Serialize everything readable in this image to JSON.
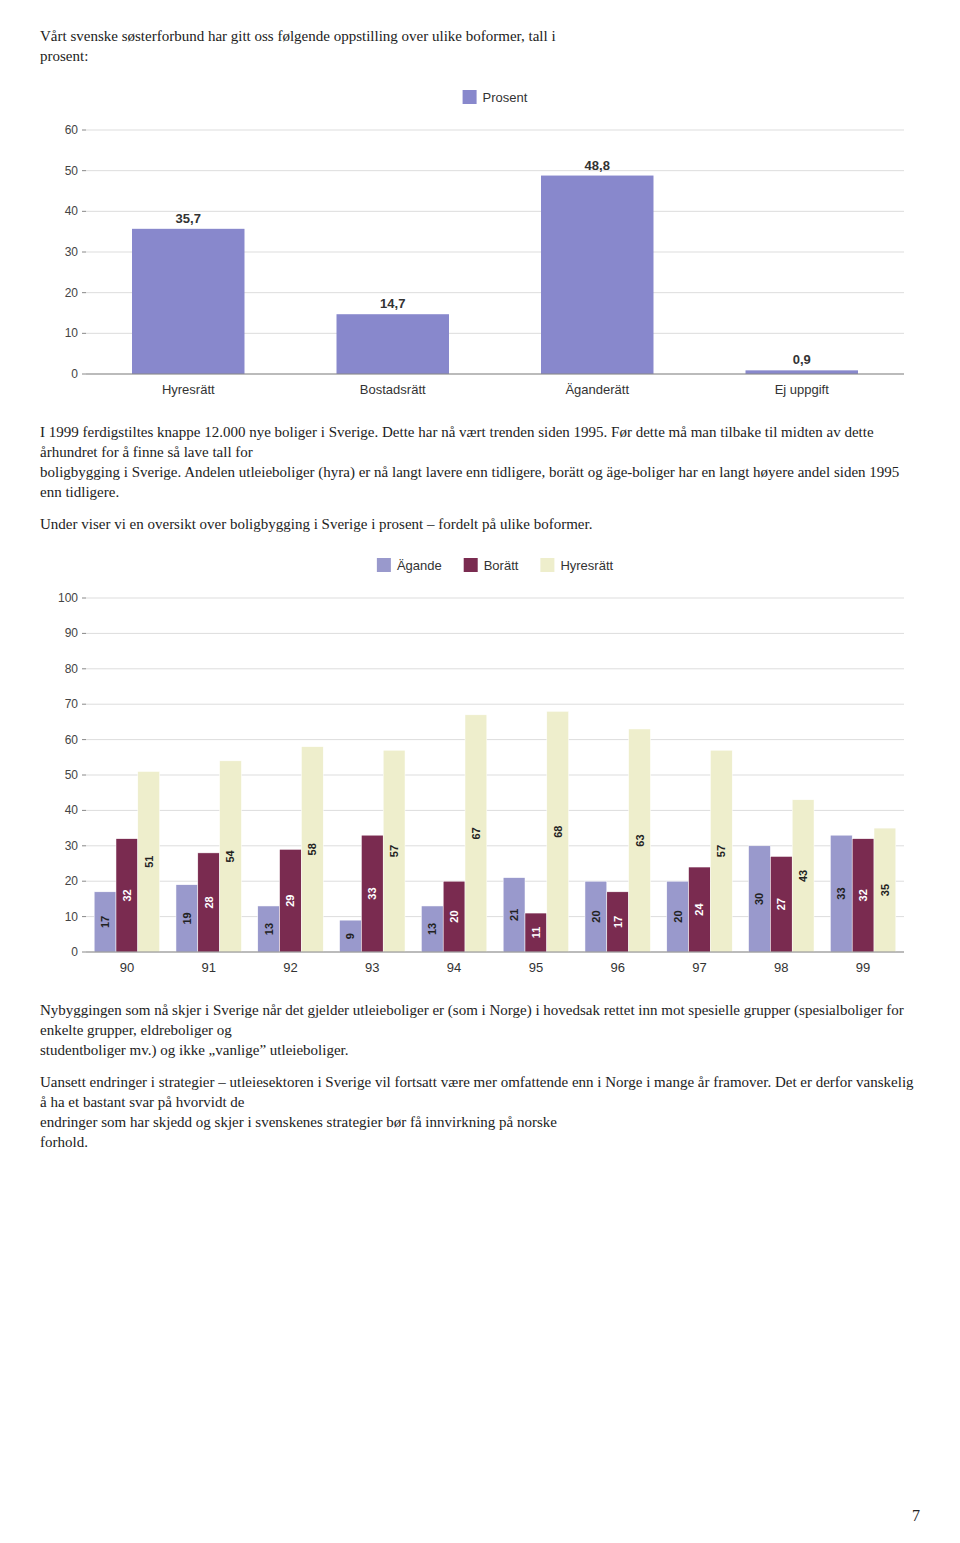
{
  "text_intro": [
    [
      "Vårt svenske søsterforbund har gitt oss følgende oppstilling over ulike boformer, tall i",
      "prosent:"
    ]
  ],
  "text_middle": [
    [
      "I 1999 ferdigstiltes knappe 12.000 nye boliger i Sverige. Dette har nå vært trenden siden 1995. Før dette må man tilbake til midten av dette århundret for å finne så lave tall for",
      "boligbygging i Sverige. Andelen utleieboliger (hyra) er nå langt lavere enn tidligere, borätt og äge-boliger har en langt høyere andel siden 1995 enn tidligere."
    ],
    [
      "Under viser vi en oversikt over boligbygging i Sverige i prosent – fordelt på ulike boformer."
    ]
  ],
  "text_bottom": [
    [
      "Nybyggingen som nå skjer i Sverige når det gjelder utleieboliger er (som i Norge) i hovedsak rettet inn mot spesielle grupper (spesialboliger for enkelte grupper, eldreboliger og",
      "studentboliger mv.) og ikke „vanlige” utleieboliger."
    ],
    [
      "Uansett endringer i strategier – utleiesektoren i Sverige vil fortsatt være mer omfattende enn i Norge i mange år framover. Det er derfor vanskelig å ha et bastant svar på hvorvidt de",
      "endringer som har skjedd og skjer i svenskenes strategier bør få innvirkning på norske",
      "forhold."
    ]
  ],
  "page_number": "7",
  "chart_data": [
    {
      "type": "bar",
      "categories": [
        "Hyresrätt",
        "Bostadsrätt",
        "Äganderätt",
        "Ej uppgift"
      ],
      "series": [
        {
          "name": "Prosent",
          "color": "#8888cc",
          "values": [
            35.7,
            14.7,
            48.8,
            0.9
          ],
          "value_labels": [
            "35,7",
            "14,7",
            "48,8",
            "0,9"
          ]
        }
      ],
      "ylim": [
        0,
        60
      ],
      "yticks": [
        0,
        10,
        20,
        30,
        40,
        50,
        60
      ],
      "grid": true,
      "legend": "top",
      "data_labels": true
    },
    {
      "type": "bar",
      "categories": [
        "90",
        "91",
        "92",
        "93",
        "94",
        "95",
        "96",
        "97",
        "98",
        "99"
      ],
      "series": [
        {
          "name": "Ägande",
          "color": "#9999cc",
          "values": [
            17,
            19,
            13,
            9,
            13,
            21,
            20,
            20,
            30,
            33
          ]
        },
        {
          "name": "Borätt",
          "color": "#7a2b50",
          "values": [
            32,
            28,
            29,
            33,
            20,
            11,
            17,
            24,
            27,
            32
          ]
        },
        {
          "name": "Hyresrätt",
          "color": "#eeeecc",
          "values": [
            51,
            54,
            58,
            57,
            67,
            68,
            63,
            57,
            43,
            35
          ]
        }
      ],
      "ylim": [
        0,
        100
      ],
      "yticks": [
        0,
        10,
        20,
        30,
        40,
        50,
        60,
        70,
        80,
        90,
        100
      ],
      "grid": true,
      "legend": "top",
      "data_labels": true
    }
  ]
}
